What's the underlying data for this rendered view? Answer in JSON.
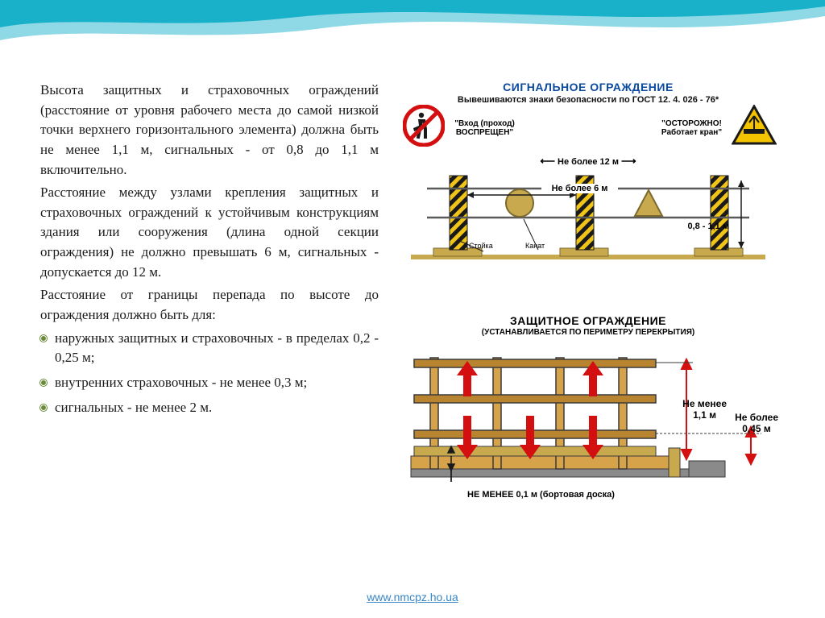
{
  "text": {
    "p1": "Высота защитных и страховочных ограждений (расстояние от уровня рабочего места до самой низкой точки верхнего горизонтального элемента) должна быть не менее 1,1 м, сигнальных - от 0,8 до 1,1 м включительно.",
    "p2": "Расстояние между узлами крепления защитных и страховочных ограждений к устойчивым конструкциям здания или сооружения (длина одной секции ограждения) не должно превышать 6 м, сигнальных - допускается до 12 м.",
    "p3": "Расстояние от границы перепада по высоте до ограждения должно быть для:",
    "li1": "наружных защитных и страховочных - в пределах 0,2 - 0,25 м;",
    "li2": "внутренних страховочных - не менее 0,3 м;",
    "li3": "сигнальных - не менее 2 м."
  },
  "footer": {
    "url": "www.nmcpz.ho.ua"
  },
  "diag1": {
    "title": "СИГНАЛЬНОЕ ОГРАЖДЕНИЕ",
    "subtitle": "Вывешиваются знаки безопасности по ГОСТ 12. 4. 026 - 76*",
    "prohib_label": "\"Вход (проход) ВОСПРЕЩЕН\"",
    "warn_label": "\"ОСТОРОЖНО! Работает кран\"",
    "dim_12": "Не более 12 м",
    "dim_6": "Не более 6 м",
    "dim_h": "0,8 - 1,1 м",
    "stand": "Стойка",
    "rope": "Канат",
    "colors": {
      "post_yellow": "#f0c419",
      "post_black": "#1a1a1a",
      "base": "#c9a94d",
      "rope": "#5a5a5a",
      "arrow": "#1a1a1a",
      "prohib_red": "#d40f0f",
      "warn_yellow": "#f5c400",
      "warn_border": "#1a1a1a",
      "shape_fill": "#c9a94d"
    }
  },
  "diag2": {
    "title": "ЗАЩИТНОЕ ОГРАЖДЕНИЕ",
    "subtitle": "(УСТАНАВЛИВАЕТСЯ ПО ПЕРИМЕТРУ ПЕРЕКРЫТИЯ)",
    "dim_11": "Не менее\n1,1 м",
    "dim_045": "Не более\n0,45 м",
    "dim_01": "НЕ МЕНЕЕ 0,1 м (бортовая доска)",
    "colors": {
      "wood": "#d6a34a",
      "wood_dark": "#b8842f",
      "outline": "#3a3a3a",
      "slab": "#8a8a8a",
      "arrow_red": "#d40f0f",
      "board": "#c9a94d"
    }
  },
  "style": {
    "wave_dark": "#18b1c9",
    "wave_light": "#8fd9e6"
  }
}
